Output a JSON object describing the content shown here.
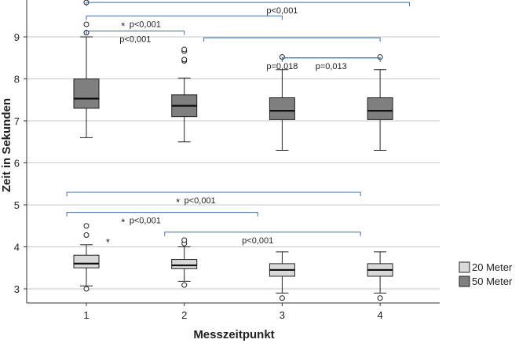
{
  "chart_data": {
    "type": "boxplot",
    "xlabel": "Messzeitpunkt",
    "ylabel": "Zeit in Sekunden",
    "ylim": [
      2.65,
      9.85
    ],
    "yticks": [
      3,
      4,
      5,
      6,
      7,
      8,
      9
    ],
    "categories": [
      "1",
      "2",
      "3",
      "4"
    ],
    "grid": true,
    "legend_position": "right",
    "colors": {
      "20 Meter": "#d9d9d9",
      "50 Meter": "#7f7f7f",
      "bracket": "#3a6fb0",
      "grid": "#c8c8c8"
    },
    "series": [
      {
        "name": "20 Meter",
        "boxes": [
          {
            "whisker_low": 3.07,
            "q1": 3.5,
            "median": 3.6,
            "q3": 3.8,
            "whisker_high": 4.05,
            "outliers": [
              3.0,
              4.28,
              4.5
            ],
            "extremes": []
          },
          {
            "whisker_low": 3.18,
            "q1": 3.48,
            "median": 3.56,
            "q3": 3.7,
            "whisker_high": 4.0,
            "outliers": [
              3.09,
              4.08,
              4.16
            ],
            "extremes": []
          },
          {
            "whisker_low": 2.9,
            "q1": 3.3,
            "median": 3.45,
            "q3": 3.6,
            "whisker_high": 3.88,
            "outliers": [
              2.78
            ],
            "extremes": []
          },
          {
            "whisker_low": 2.9,
            "q1": 3.3,
            "median": 3.45,
            "q3": 3.6,
            "whisker_high": 3.88,
            "outliers": [
              2.78
            ],
            "extremes": []
          }
        ]
      },
      {
        "name": "50 Meter",
        "boxes": [
          {
            "whisker_low": 6.6,
            "q1": 7.3,
            "median": 7.53,
            "q3": 8.0,
            "whisker_high": 9.0,
            "outliers": [
              9.1,
              9.3,
              9.82
            ],
            "extremes": []
          },
          {
            "whisker_low": 6.5,
            "q1": 7.1,
            "median": 7.36,
            "q3": 7.62,
            "whisker_high": 8.02,
            "outliers": [
              8.43,
              8.46,
              8.66,
              8.7
            ],
            "extremes": []
          },
          {
            "whisker_low": 6.3,
            "q1": 7.03,
            "median": 7.24,
            "q3": 7.55,
            "whisker_high": 8.22,
            "outliers": [
              8.52
            ],
            "extremes": []
          },
          {
            "whisker_low": 6.3,
            "q1": 7.03,
            "median": 7.24,
            "q3": 7.55,
            "whisker_high": 8.22,
            "outliers": [
              8.52
            ],
            "extremes": []
          }
        ]
      }
    ],
    "stray_markers": [
      {
        "label": "*",
        "x": 1.22,
        "y": 4.12
      }
    ],
    "comparisons": [
      {
        "from": 1,
        "to": 4.3,
        "y": 9.82,
        "label": "p<0,001",
        "label_x": 3.0,
        "star": ""
      },
      {
        "from": 1,
        "to": 3,
        "y": 9.5,
        "label": "p<0,001",
        "label_x": 1.6,
        "star": "*"
      },
      {
        "from": 1,
        "to": 2,
        "y": 9.14,
        "label": "p<0,001",
        "label_x": 1.5,
        "star": ""
      },
      {
        "from": 2.2,
        "to": 4,
        "y": 8.98,
        "label": "",
        "label_x": 3.0,
        "star": ""
      },
      {
        "from": 3,
        "to": 4,
        "y": 8.5,
        "label": "p=0,013",
        "label_x": 3.5,
        "star": ""
      },
      {
        "from": 3,
        "to": 4,
        "y": 8.5,
        "label": "p=0,018",
        "label_x": 3.0,
        "star": ""
      },
      {
        "from": 0.8,
        "to": 3.8,
        "y": 5.3,
        "label": "p<0,001",
        "label_x": 2.16,
        "star": "*"
      },
      {
        "from": 0.8,
        "to": 2.75,
        "y": 4.82,
        "label": "p<0,001",
        "label_x": 1.6,
        "star": "*"
      },
      {
        "from": 1.8,
        "to": 3.8,
        "y": 4.35,
        "label": "p<0,001",
        "label_x": 2.75,
        "star": ""
      }
    ]
  }
}
